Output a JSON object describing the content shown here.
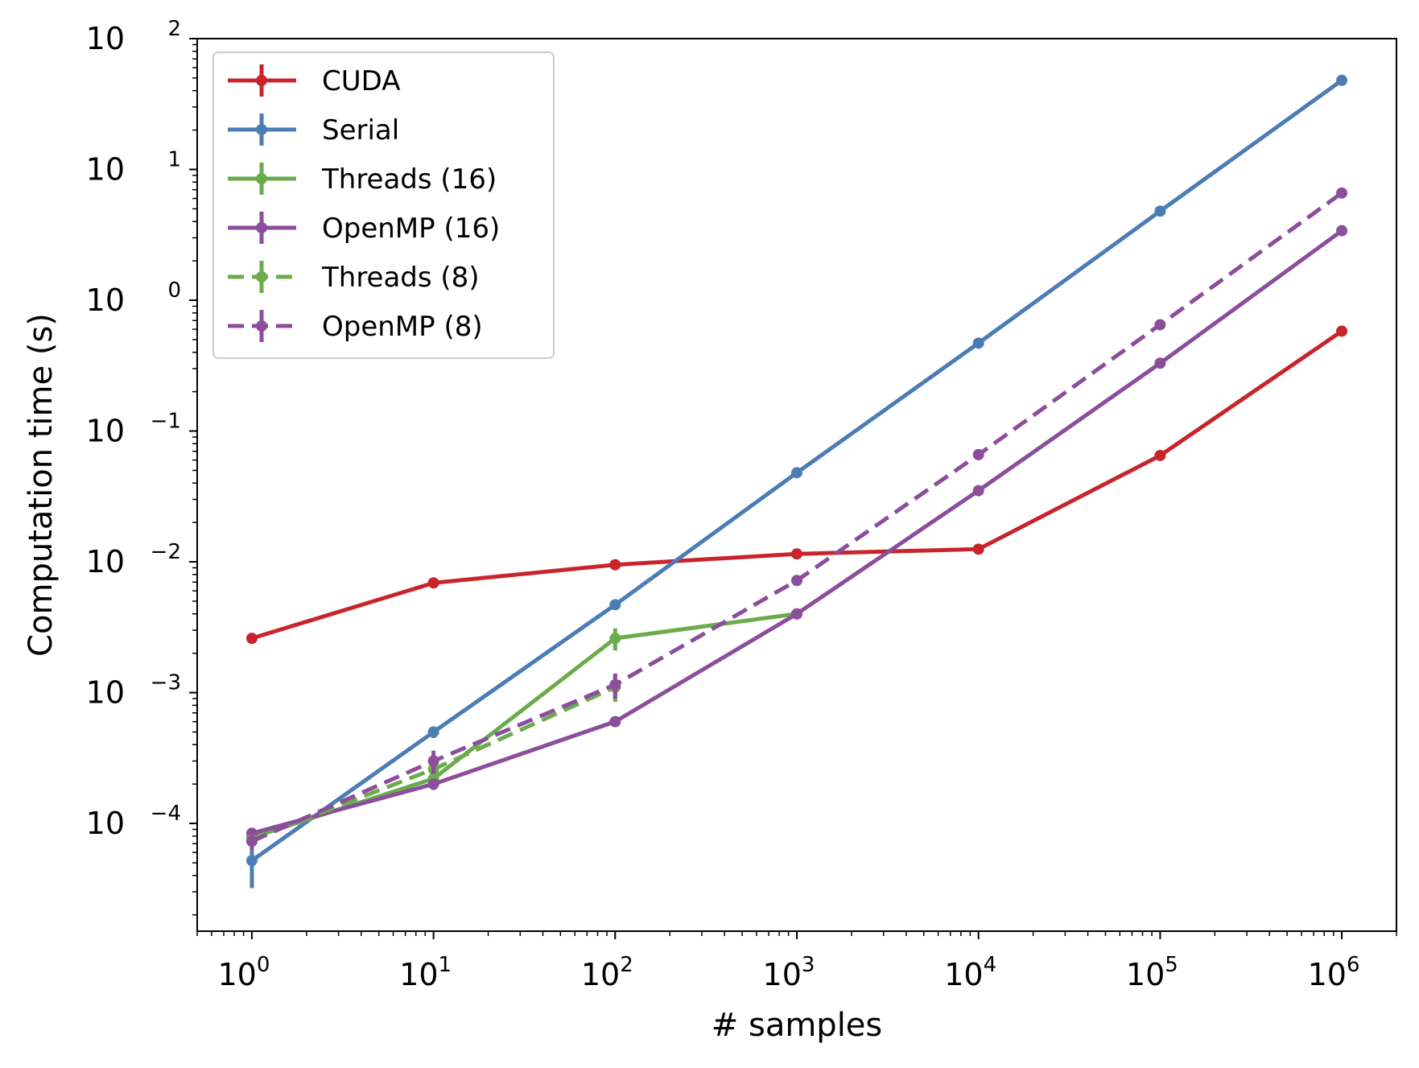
{
  "chart_data": {
    "type": "line",
    "xlabel": "# samples",
    "ylabel": "Computation time (s)",
    "xscale": "log",
    "yscale": "log",
    "xlim": [
      0.5,
      2000000
    ],
    "ylim": [
      1.5e-05,
      100
    ],
    "x_ticks": [
      {
        "base": "10",
        "exp": "0",
        "value": 1
      },
      {
        "base": "10",
        "exp": "1",
        "value": 10
      },
      {
        "base": "10",
        "exp": "2",
        "value": 100
      },
      {
        "base": "10",
        "exp": "3",
        "value": 1000
      },
      {
        "base": "10",
        "exp": "4",
        "value": 10000
      },
      {
        "base": "10",
        "exp": "5",
        "value": 100000
      },
      {
        "base": "10",
        "exp": "6",
        "value": 1000000
      }
    ],
    "y_ticks": [
      {
        "base": "10",
        "exp": "−4",
        "value": 0.0001
      },
      {
        "base": "10",
        "exp": "−3",
        "value": 0.001
      },
      {
        "base": "10",
        "exp": "−2",
        "value": 0.01
      },
      {
        "base": "10",
        "exp": "−1",
        "value": 0.1
      },
      {
        "base": "10",
        "exp": "0",
        "value": 1
      },
      {
        "base": "10",
        "exp": "1",
        "value": 10
      },
      {
        "base": "10",
        "exp": "2",
        "value": 100
      }
    ],
    "legend_position": "upper-left",
    "grid": false,
    "series": [
      {
        "name": "CUDA",
        "color": "#c8242b",
        "dashed": false,
        "x": [
          1,
          10,
          100,
          1000,
          10000,
          100000,
          1000000
        ],
        "y": [
          0.0026,
          0.0069,
          0.0095,
          0.0115,
          0.0125,
          0.065,
          0.58
        ],
        "err": [
          0,
          0,
          0,
          0,
          0,
          0,
          0
        ]
      },
      {
        "name": "Serial",
        "color": "#4b7db5",
        "dashed": false,
        "x": [
          1,
          10,
          100,
          1000,
          10000,
          100000,
          1000000
        ],
        "y": [
          5.2e-05,
          0.0005,
          0.0047,
          0.048,
          0.47,
          4.8,
          48
        ],
        "err": [
          2e-05,
          5e-05,
          0,
          0,
          0,
          0,
          0
        ]
      },
      {
        "name": "Threads (16)",
        "color": "#6aab4b",
        "dashed": false,
        "x": [
          1,
          10,
          100,
          1000
        ],
        "y": [
          7.8e-05,
          0.00022,
          0.0026,
          0.004
        ],
        "err": [
          0,
          3e-05,
          0.0005,
          0
        ]
      },
      {
        "name": "OpenMP (16)",
        "color": "#8b4d9c",
        "dashed": false,
        "x": [
          1,
          10,
          100,
          1000,
          10000,
          100000,
          1000000
        ],
        "y": [
          8.4e-05,
          0.0002,
          0.0006,
          0.004,
          0.035,
          0.33,
          3.4
        ],
        "err": [
          0,
          2e-05,
          0,
          0,
          0,
          0,
          0
        ]
      },
      {
        "name": "Threads (8)",
        "color": "#6aab4b",
        "dashed": true,
        "x": [
          1,
          10,
          100
        ],
        "y": [
          7.5e-05,
          0.00026,
          0.0011
        ],
        "err": [
          0,
          3e-05,
          0.00025
        ]
      },
      {
        "name": "OpenMP (8)",
        "color": "#8b4d9c",
        "dashed": true,
        "x": [
          1,
          10,
          100,
          1000,
          10000,
          100000,
          1000000
        ],
        "y": [
          7.3e-05,
          0.0003,
          0.00115,
          0.0072,
          0.066,
          0.65,
          6.6
        ],
        "err": [
          1e-05,
          6e-05,
          0.00025,
          0,
          0,
          0,
          0
        ]
      }
    ]
  }
}
